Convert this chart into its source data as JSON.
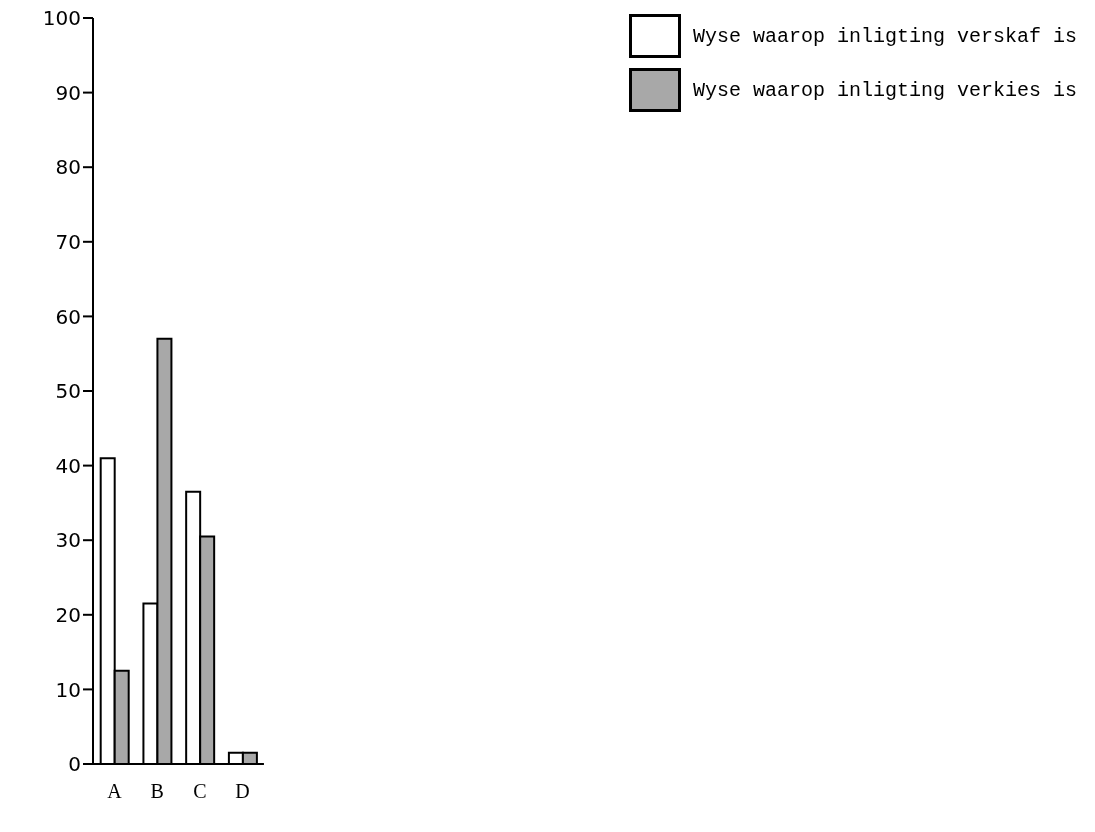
{
  "chart_data": {
    "type": "bar",
    "categories": [
      "A",
      "B",
      "C",
      "D"
    ],
    "series": [
      {
        "name": "Wyse waarop inligting verskaf is",
        "color": "#ffffff",
        "values": [
          41,
          21.5,
          36.5,
          1.5
        ]
      },
      {
        "name": "Wyse waarop inligting verkies is",
        "color": "#a8a8a8",
        "values": [
          12.5,
          57,
          30.5,
          1.5
        ]
      }
    ],
    "ylim": [
      0,
      100
    ],
    "yticks": [
      0,
      10,
      20,
      30,
      40,
      50,
      60,
      70,
      80,
      90,
      100
    ],
    "grid": false,
    "legend": "top right"
  }
}
